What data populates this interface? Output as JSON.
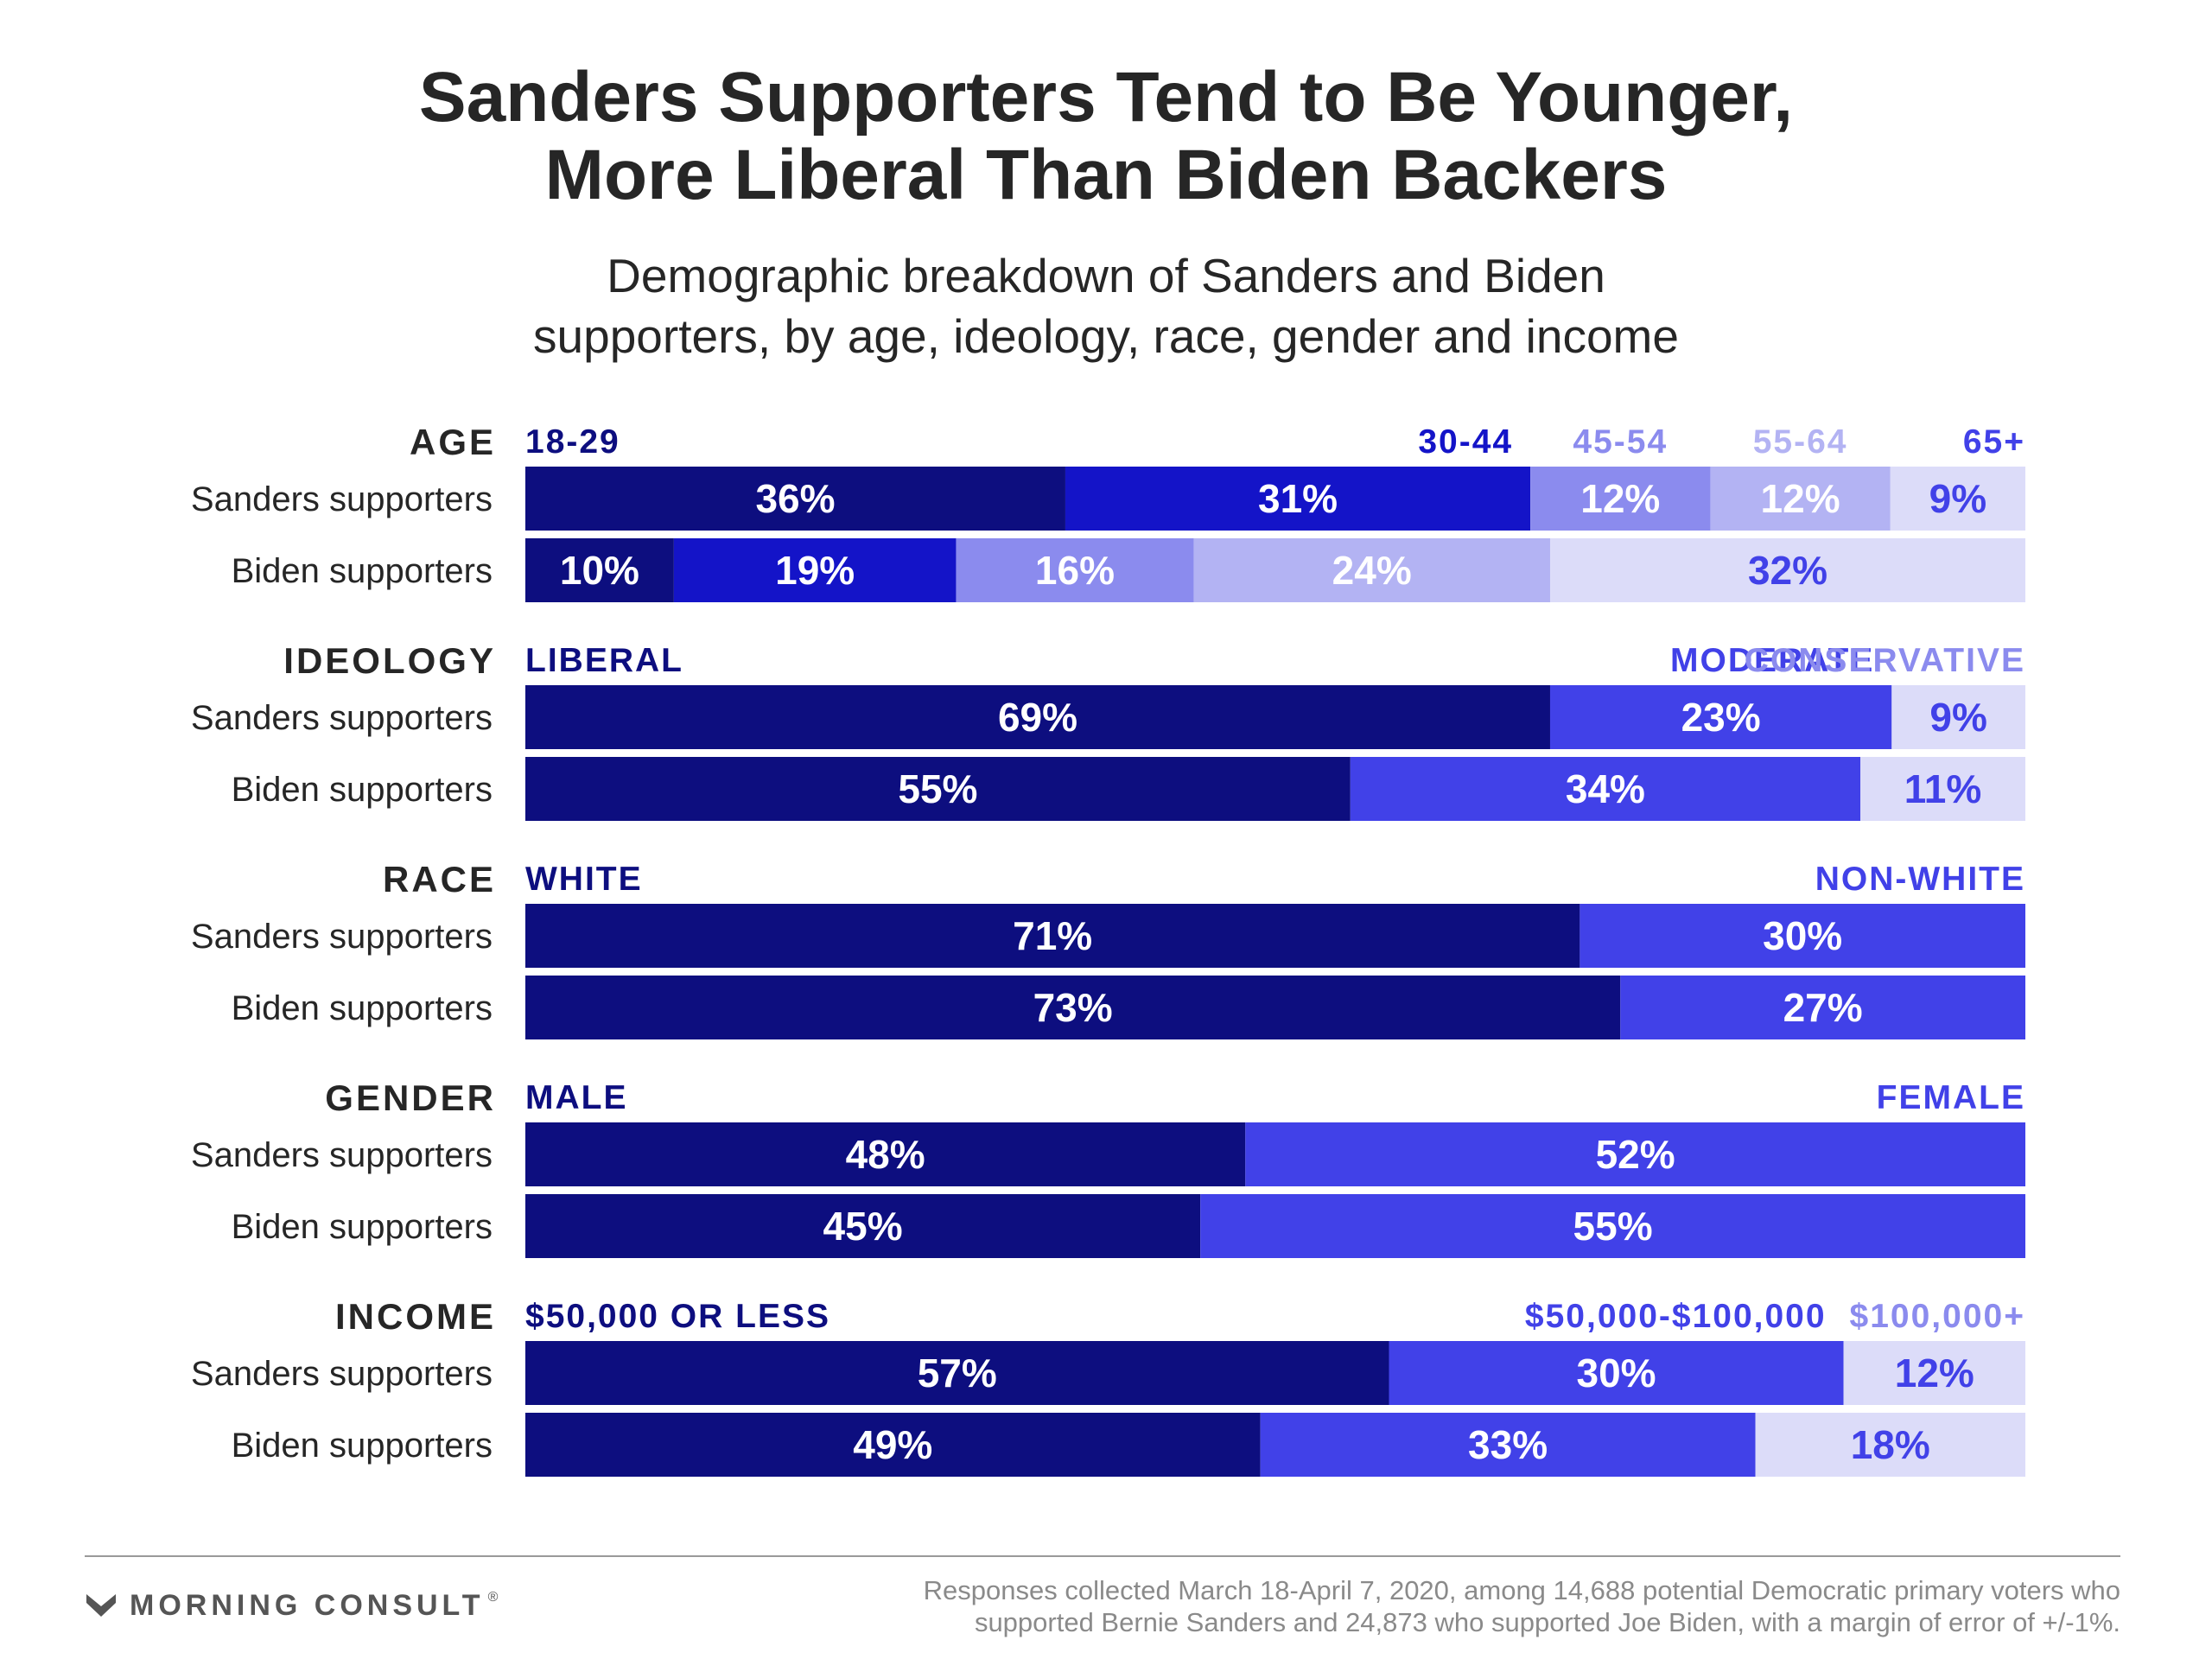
{
  "title_line1": "Sanders Supporters Tend to Be Younger,",
  "title_line2": "More Liberal Than Biden Backers",
  "subtitle_line1": "Demographic breakdown of Sanders and Biden",
  "subtitle_line2": "supporters, by age, ideology, race, gender and income",
  "footer": {
    "logo_text": "MORNING CONSULT",
    "logo_mark": "trademark-sign",
    "logo_icon": "morning-consult-chevron-icon",
    "note_line1": "Responses collected March 18-April 7, 2020, among 14,688 potential Democratic primary voters who",
    "note_line2": "supported Bernie Sanders and 24,873 who supported Joe Biden, with a margin of error of +/-1%."
  },
  "colors": {
    "darkest": "#0d0e7f",
    "dark": "#1414c8",
    "medium": "#4141e8",
    "light": "#8b8bee",
    "lighter": "#b3b3f3",
    "lightest": "#dcdcf9",
    "text_dark": "#262626"
  },
  "chart_data": {
    "type": "bar",
    "stacked": true,
    "orientation": "horizontal",
    "rows": [
      "Sanders supporters",
      "Biden supporters"
    ],
    "groups": [
      {
        "name": "AGE",
        "segments": [
          {
            "label": "18-29",
            "color": "#0d0e7f",
            "label_color": "#0d0e7f",
            "sanders": 36,
            "biden": 10,
            "sanders_text": "36%",
            "biden_text": "10%",
            "text_color": "#ffffff"
          },
          {
            "label": "30-44",
            "color": "#1414c8",
            "label_color": "#1414c8",
            "sanders": 31,
            "biden": 19,
            "sanders_text": "31%",
            "biden_text": "19%",
            "text_color": "#ffffff"
          },
          {
            "label": "45-54",
            "color": "#8b8bee",
            "label_color": "#8b8bee",
            "sanders": 12,
            "biden": 16,
            "sanders_text": "12%",
            "biden_text": "16%",
            "text_color": "#ffffff"
          },
          {
            "label": "55-64",
            "color": "#b3b3f3",
            "label_color": "#b3b3f3",
            "sanders": 12,
            "biden": 24,
            "sanders_text": "12%",
            "biden_text": "24%",
            "text_color": "#ffffff"
          },
          {
            "label": "65+",
            "color": "#dcdcf9",
            "label_color": "#4141e8",
            "sanders": 9,
            "biden": 32,
            "sanders_text": "9%",
            "biden_text": "32%",
            "text_color": "#4141e8"
          }
        ]
      },
      {
        "name": "IDEOLOGY",
        "segments": [
          {
            "label": "LIBERAL",
            "color": "#0d0e7f",
            "label_color": "#0d0e7f",
            "sanders": 69,
            "biden": 55,
            "sanders_text": "69%",
            "biden_text": "55%",
            "text_color": "#ffffff"
          },
          {
            "label": "MODERATE",
            "color": "#4141e8",
            "label_color": "#4141e8",
            "sanders": 23,
            "biden": 34,
            "sanders_text": "23%",
            "biden_text": "34%",
            "text_color": "#ffffff"
          },
          {
            "label": "CONSERVATIVE",
            "color": "#dcdcf9",
            "label_color": "#8b8bee",
            "sanders": 9,
            "biden": 11,
            "sanders_text": "9%",
            "biden_text": "11%",
            "text_color": "#4141e8"
          }
        ]
      },
      {
        "name": "RACE",
        "segments": [
          {
            "label": "WHITE",
            "color": "#0d0e7f",
            "label_color": "#0d0e7f",
            "sanders": 71,
            "biden": 73,
            "sanders_text": "71%",
            "biden_text": "73%",
            "text_color": "#ffffff"
          },
          {
            "label": "NON-WHITE",
            "color": "#4141e8",
            "label_color": "#4141e8",
            "sanders": 30,
            "biden": 27,
            "sanders_text": "30%",
            "biden_text": "27%",
            "text_color": "#ffffff"
          }
        ]
      },
      {
        "name": "GENDER",
        "segments": [
          {
            "label": "MALE",
            "color": "#0d0e7f",
            "label_color": "#0d0e7f",
            "sanders": 48,
            "biden": 45,
            "sanders_text": "48%",
            "biden_text": "45%",
            "text_color": "#ffffff"
          },
          {
            "label": "FEMALE",
            "color": "#4141e8",
            "label_color": "#4141e8",
            "sanders": 52,
            "biden": 55,
            "sanders_text": "52%",
            "biden_text": "55%",
            "text_color": "#ffffff"
          }
        ]
      },
      {
        "name": "INCOME",
        "segments": [
          {
            "label": "$50,000 OR LESS",
            "color": "#0d0e7f",
            "label_color": "#0d0e7f",
            "sanders": 57,
            "biden": 49,
            "sanders_text": "57%",
            "biden_text": "49%",
            "text_color": "#ffffff"
          },
          {
            "label": "$50,000-$100,000",
            "color": "#4141e8",
            "label_color": "#4141e8",
            "sanders": 30,
            "biden": 33,
            "sanders_text": "30%",
            "biden_text": "33%",
            "text_color": "#ffffff"
          },
          {
            "label": "$100,000+",
            "color": "#dcdcf9",
            "label_color": "#8b8bee",
            "sanders": 12,
            "biden": 18,
            "sanders_text": "12%",
            "biden_text": "18%",
            "text_color": "#4141e8"
          }
        ]
      }
    ]
  }
}
